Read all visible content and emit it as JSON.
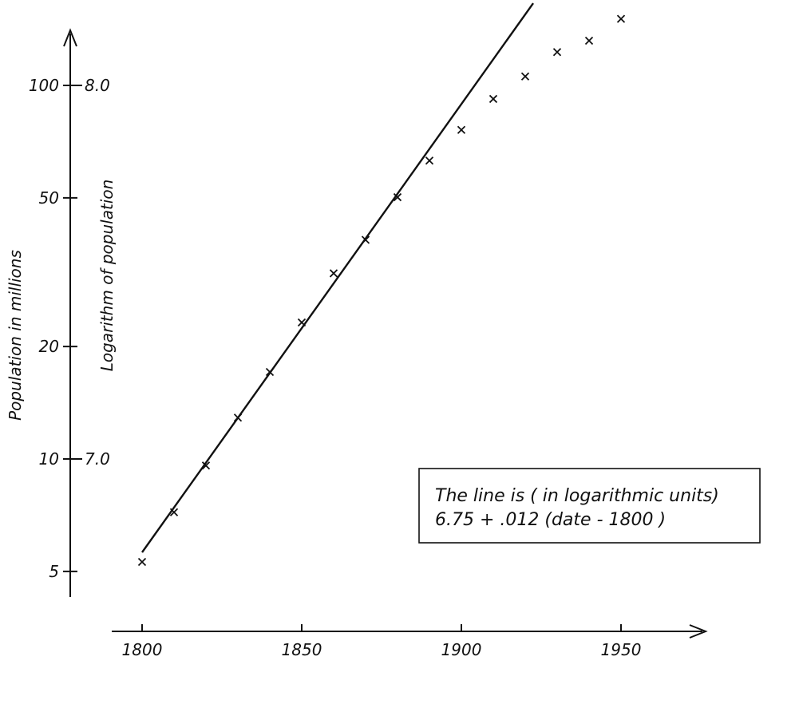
{
  "chart_data": {
    "type": "scatter",
    "title": "",
    "xlabel": "",
    "ylabel": "Population in millions",
    "ylabel_secondary": "Logarithm of population",
    "y_scale": "log",
    "xlim": [
      1790,
      1965
    ],
    "x_ticks": [
      "1800",
      "1850",
      "1900",
      "1950"
    ],
    "x_tick_values": [
      1800,
      1850,
      1900,
      1950
    ],
    "y_ticks": [
      "5",
      "10",
      "20",
      "50",
      "100"
    ],
    "y_tick_values": [
      5,
      10,
      20,
      50,
      100
    ],
    "y_secondary_ticks": [
      "7.0",
      "8.0"
    ],
    "y_secondary_tick_values": [
      10,
      100
    ],
    "grid": false,
    "series": [
      {
        "points": [
          {
            "x": 1800,
            "y": 5.3
          },
          {
            "x": 1810,
            "y": 7.2
          },
          {
            "x": 1820,
            "y": 9.6
          },
          {
            "x": 1830,
            "y": 12.9
          },
          {
            "x": 1840,
            "y": 17.1
          },
          {
            "x": 1850,
            "y": 23.2
          },
          {
            "x": 1860,
            "y": 31.4
          },
          {
            "x": 1870,
            "y": 38.6
          },
          {
            "x": 1880,
            "y": 50.2
          },
          {
            "x": 1890,
            "y": 62.9
          },
          {
            "x": 1900,
            "y": 76.0
          },
          {
            "x": 1910,
            "y": 92.0
          },
          {
            "x": 1920,
            "y": 105.7
          },
          {
            "x": 1930,
            "y": 122.8
          },
          {
            "x": 1940,
            "y": 131.7
          },
          {
            "x": 1950,
            "y": 150.7
          }
        ]
      }
    ],
    "fit_line": {
      "intercept": 6.75,
      "slope": 0.012,
      "x_origin": 1800,
      "from": 1800,
      "to": 1922.5
    },
    "annotation": {
      "lines": [
        "The line is ( in logarithmic units)",
        "6.75 + .012 (date - 1800 )"
      ],
      "placement": "lower-right"
    }
  }
}
